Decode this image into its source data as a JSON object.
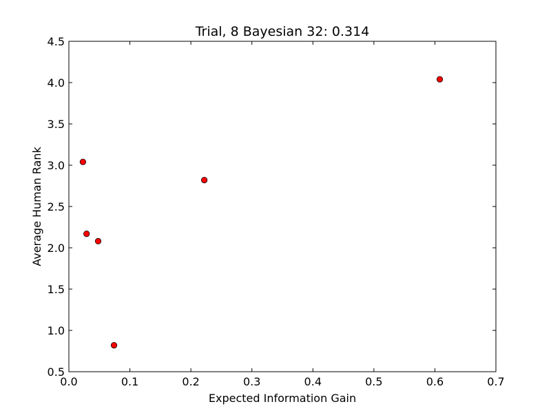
{
  "chart_data": {
    "type": "scatter",
    "title": "Trial, 8 Bayesian 32: 0.314",
    "xlabel": "Expected Information Gain",
    "ylabel": "Average Human Rank",
    "xlim": [
      0.0,
      0.7
    ],
    "ylim": [
      0.5,
      4.5
    ],
    "xticks": [
      0.0,
      0.1,
      0.2,
      0.3,
      0.4,
      0.5,
      0.6,
      0.7
    ],
    "yticks": [
      0.5,
      1.0,
      1.5,
      2.0,
      2.5,
      3.0,
      3.5,
      4.0,
      4.5
    ],
    "xtick_labels": [
      "0.0",
      "0.1",
      "0.2",
      "0.3",
      "0.4",
      "0.5",
      "0.6",
      "0.7"
    ],
    "ytick_labels": [
      "0.5",
      "1.0",
      "1.5",
      "2.0",
      "2.5",
      "3.0",
      "3.5",
      "4.0",
      "4.5"
    ],
    "grid": false,
    "marker_color": "#ff0000",
    "marker_edge_color": "#000000",
    "points": [
      {
        "x": 0.023,
        "y": 3.04
      },
      {
        "x": 0.029,
        "y": 2.17
      },
      {
        "x": 0.048,
        "y": 2.08
      },
      {
        "x": 0.074,
        "y": 0.82
      },
      {
        "x": 0.222,
        "y": 2.82
      },
      {
        "x": 0.608,
        "y": 4.04
      }
    ]
  }
}
